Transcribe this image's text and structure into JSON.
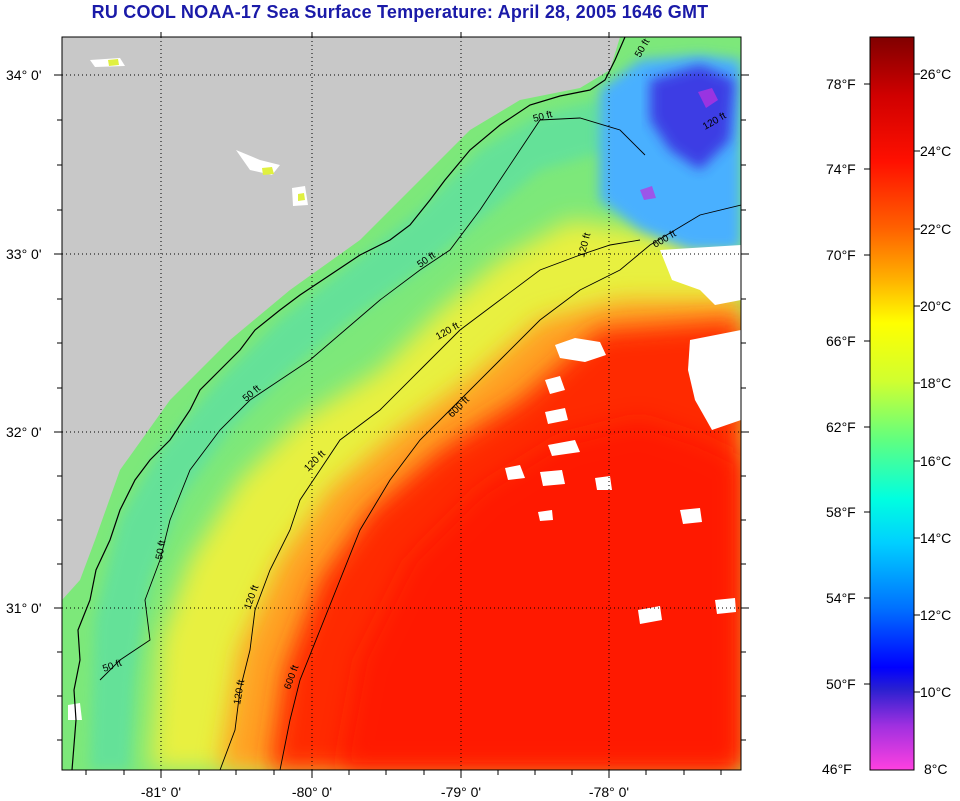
{
  "title": "RU COOL  NOAA-17  Sea Surface Temperature:  April 28, 2005 1646 GMT",
  "lat_labels": [
    "34° 0'",
    "33° 0'",
    "32° 0'",
    "31° 0'"
  ],
  "lon_labels": [
    "-81° 0'",
    "-80° 0'",
    "-79° 0'",
    "-78° 0'"
  ],
  "contour_labels": [
    "50 ft",
    "120 ft",
    "600 ft"
  ],
  "colorbar": {
    "fahrenheit": [
      "78°F",
      "74°F",
      "70°F",
      "66°F",
      "62°F",
      "58°F",
      "54°F",
      "50°F",
      "46°F"
    ],
    "celsius": [
      "26°C",
      "24°C",
      "22°C",
      "20°C",
      "18°C",
      "16°C",
      "14°C",
      "12°C",
      "10°C",
      "8°C"
    ],
    "colors": [
      "#ff40e0",
      "#6a2ad0",
      "#0000ff",
      "#0060ff",
      "#00c0ff",
      "#00ffe0",
      "#40ff90",
      "#c0ff40",
      "#ffff00",
      "#ffa000",
      "#ff5000",
      "#ff0000",
      "#c00000",
      "#800000"
    ]
  }
}
